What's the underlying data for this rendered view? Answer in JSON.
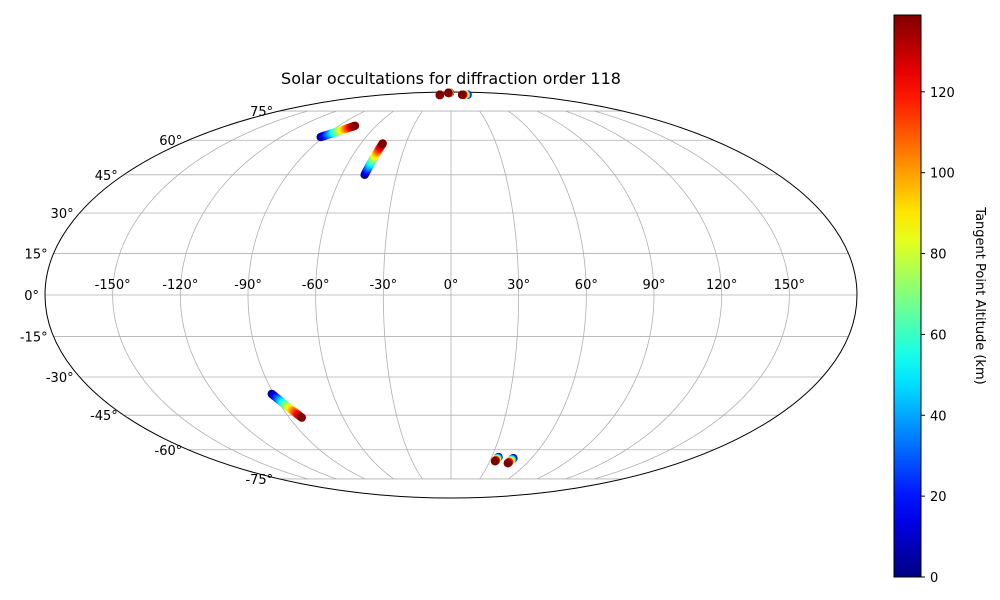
{
  "chart_data": {
    "type": "scatter",
    "projection": "mollweide",
    "title": "Solar occultations for diffraction order 118",
    "grid": true,
    "longitude_ticks": [
      -150,
      -120,
      -90,
      -60,
      -30,
      0,
      30,
      60,
      90,
      120,
      150
    ],
    "longitude_tick_labels": [
      "-150°",
      "-120°",
      "-90°",
      "-60°",
      "-30°",
      "0°",
      "30°",
      "60°",
      "90°",
      "120°",
      "150°"
    ],
    "latitude_ticks": [
      -75,
      -60,
      -45,
      -30,
      -15,
      0,
      15,
      30,
      45,
      60,
      75
    ],
    "latitude_tick_labels": [
      "-75°",
      "-60°",
      "-45°",
      "-30°",
      "-15°",
      "0°",
      "15°",
      "30°",
      "45°",
      "60°",
      "75°"
    ],
    "colorbar": {
      "label": "Tangent Point Altitude (km)",
      "colormap": "jet",
      "range": [
        0,
        139
      ],
      "ticks": [
        0,
        20,
        40,
        60,
        80,
        100,
        120
      ],
      "tick_labels": [
        "0",
        "20",
        "40",
        "60",
        "80",
        "100",
        "120"
      ],
      "position": "right"
    },
    "tracks": [
      {
        "start": {
          "lon": -92.0,
          "lat": 61.5,
          "alt": 0
        },
        "end": {
          "lon": -77.0,
          "lat": 67.0,
          "alt": 139
        }
      },
      {
        "start": {
          "lon": -47.5,
          "lat": 45.0,
          "alt": 0
        },
        "end": {
          "lon": -45.5,
          "lat": 58.5,
          "alt": 139
        }
      },
      {
        "start": {
          "lon": -28.0,
          "lat": 86.0,
          "alt": 0
        },
        "end": {
          "lon": -30.0,
          "lat": 86.5,
          "alt": 139
        }
      },
      {
        "start": {
          "lon": -5.0,
          "lat": 88.5,
          "alt": 0
        },
        "end": {
          "lon": -13.0,
          "lat": 88.5,
          "alt": 139
        }
      },
      {
        "start": {
          "lon": 45.0,
          "lat": 86.5,
          "alt": 0
        },
        "end": {
          "lon": 30.0,
          "lat": 86.5,
          "alt": 139
        }
      },
      {
        "start": {
          "lon": -91.0,
          "lat": -36.5,
          "alt": 0
        },
        "end": {
          "lon": -83.0,
          "lat": -46.0,
          "alt": 139
        }
      },
      {
        "start": {
          "lon": 35.0,
          "lat": -63.5,
          "alt": 0
        },
        "end": {
          "lon": 34.0,
          "lat": -65.5,
          "alt": 139
        }
      },
      {
        "start": {
          "lon": 46.5,
          "lat": -64.0,
          "alt": 0
        },
        "end": {
          "lon": 45.0,
          "lat": -66.5,
          "alt": 139
        }
      }
    ]
  }
}
